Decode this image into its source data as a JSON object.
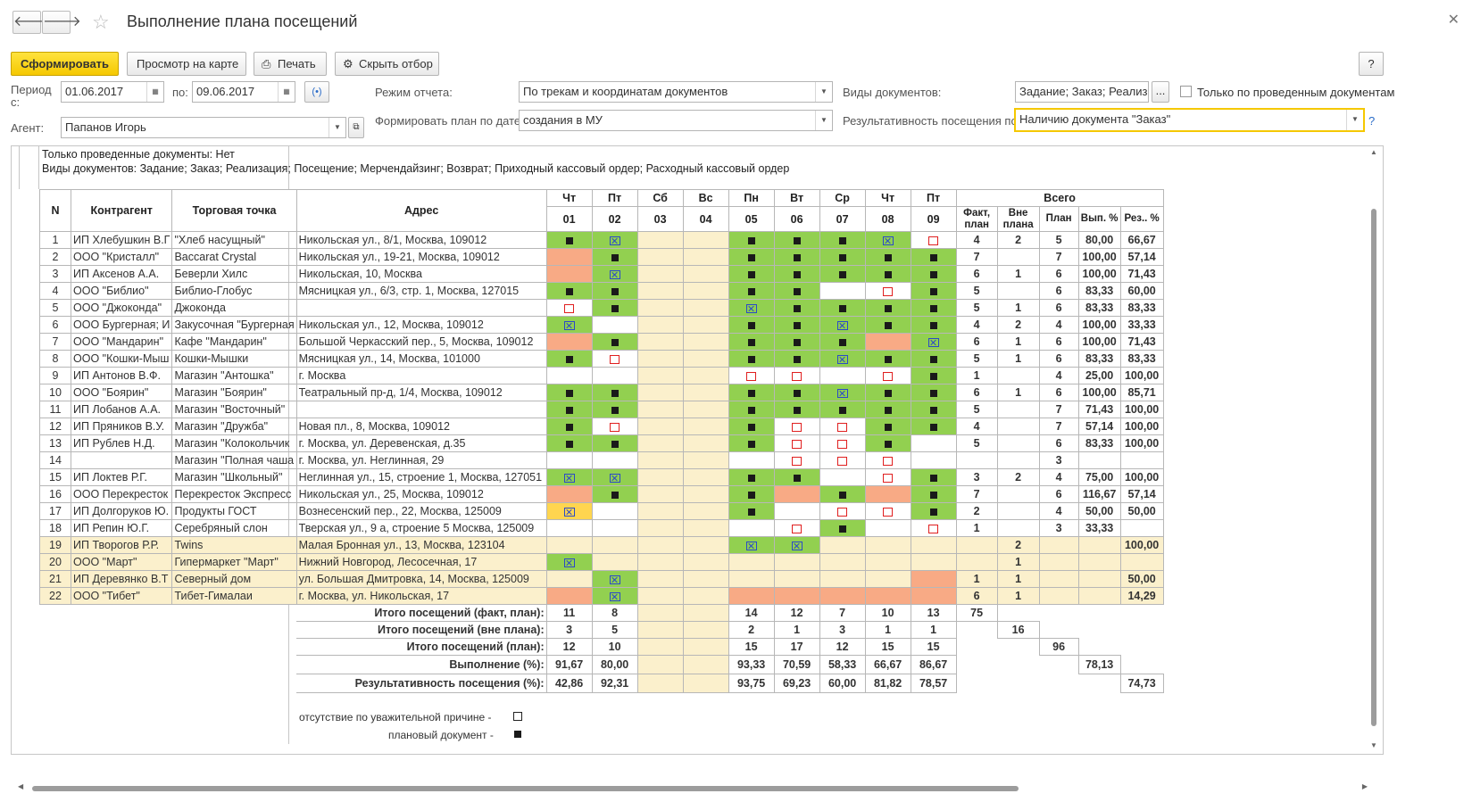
{
  "window": {
    "title": "Выполнение плана посещений",
    "back": "🡐",
    "forward": "🡒",
    "close": "✕"
  },
  "toolbar": {
    "generate": "Сформировать",
    "map": "Просмотр на карте",
    "print": "Печать",
    "hide": "Скрыть отбор",
    "help": "?"
  },
  "filters": {
    "period_label": "Период с:",
    "period_from": "01.06.2017",
    "to_label": "по:",
    "period_to": "09.06.2017",
    "agent_label": "Агент:",
    "agent": "Папанов Игорь",
    "mode_label": "Режим отчета:",
    "mode": "По трекам и координатам документов",
    "plan_label": "Формировать план по дате:",
    "plan": "создания в МУ",
    "doc_types_label": "Виды документов:",
    "doc_types": "Задание; Заказ; Реализа",
    "only_posted_label": "Только по проведенным документам",
    "effect_label": "Результативность посещения по:",
    "effect": "Наличию документа \"Заказ\"",
    "help2": "?"
  },
  "report": {
    "info1": "Только проведенные документы: Нет",
    "info2": "Виды документов: Задание; Заказ; Реализация; Посещение; Мерчендайзинг; Возврат; Приходный кассовый ордер; Расходный кассовый ордер",
    "headers": {
      "n": "N",
      "contractor": "Контрагент",
      "point": "Торговая точка",
      "address": "Адрес",
      "total": "Всего",
      "fact": "Факт, план",
      "extra": "Вне плана",
      "plan": "План",
      "exec": "Вып. %",
      "res": "Рез.. %"
    },
    "days": [
      {
        "dow": "Чт",
        "day": "01",
        "weekend": false
      },
      {
        "dow": "Пт",
        "day": "02",
        "weekend": false
      },
      {
        "dow": "Сб",
        "day": "03",
        "weekend": true
      },
      {
        "dow": "Вс",
        "day": "04",
        "weekend": true
      },
      {
        "dow": "Пн",
        "day": "05",
        "weekend": false
      },
      {
        "dow": "Вт",
        "day": "06",
        "weekend": false
      },
      {
        "dow": "Ср",
        "day": "07",
        "weekend": false
      },
      {
        "dow": "Чт",
        "day": "08",
        "weekend": false
      },
      {
        "dow": "Пт",
        "day": "09",
        "weekend": false
      }
    ],
    "rows": [
      {
        "n": "1",
        "c": "ИП Хлебушкин В.Г",
        "p": "\"Хлеб насущный\"",
        "a": "Никольская ул., 8/1, Москва, 109012",
        "cells": [
          "g:f",
          "g:x",
          "",
          "",
          "g:f",
          "g:f",
          "g:f",
          "g:x",
          "w:o"
        ],
        "fact": "4",
        "ext": "2",
        "plan": "5",
        "exec": "80,00",
        "res": "66,67",
        "hl": false
      },
      {
        "n": "2",
        "c": "ООО \"Кристалл\"",
        "p": "Baccarat Crystal",
        "a": "Никольская ул., 19-21, Москва, 109012",
        "cells": [
          "s:",
          "g:f",
          "",
          "",
          "g:f",
          "g:f",
          "g:f",
          "g:f",
          "g:f"
        ],
        "fact": "7",
        "ext": "",
        "plan": "7",
        "exec": "100,00",
        "res": "57,14",
        "hl": false
      },
      {
        "n": "3",
        "c": "ИП Аксенов А.А.",
        "p": "Беверли Хилс",
        "a": "Никольская, 10, Москва",
        "cells": [
          "s:",
          "g:x",
          "",
          "",
          "g:f",
          "g:f",
          "g:f",
          "g:f",
          "g:f"
        ],
        "fact": "6",
        "ext": "1",
        "plan": "6",
        "exec": "100,00",
        "res": "71,43",
        "hl": false
      },
      {
        "n": "4",
        "c": "ООО \"Библио\"",
        "p": "Библио-Глобус",
        "a": "Мясницкая ул., 6/3, стр. 1, Москва, 127015",
        "cells": [
          "g:f",
          "g:f",
          "",
          "",
          "g:f",
          "g:f",
          "w:",
          "w:o",
          "g:f"
        ],
        "fact": "5",
        "ext": "",
        "plan": "6",
        "exec": "83,33",
        "res": "60,00",
        "hl": false
      },
      {
        "n": "5",
        "c": "ООО \"Джоконда\"",
        "p": "Джоконда",
        "a": "",
        "cells": [
          "w:o",
          "g:f",
          "",
          "",
          "g:x",
          "g:f",
          "g:f",
          "g:f",
          "g:f"
        ],
        "fact": "5",
        "ext": "1",
        "plan": "6",
        "exec": "83,33",
        "res": "83,33",
        "hl": false
      },
      {
        "n": "6",
        "c": "ООО Бургерная; И",
        "p": "Закусочная \"Бургерная",
        "a": "Никольская ул., 12, Москва, 109012",
        "cells": [
          "g:x",
          "w:",
          "",
          "",
          "g:f",
          "g:f",
          "g:x",
          "g:f",
          "g:f"
        ],
        "fact": "4",
        "ext": "2",
        "plan": "4",
        "exec": "100,00",
        "res": "33,33",
        "hl": false
      },
      {
        "n": "7",
        "c": "ООО \"Мандарин\"",
        "p": "Кафе \"Мандарин\"",
        "a": "Большой Черкасский пер., 5, Москва, 109012",
        "cells": [
          "s:",
          "g:f",
          "",
          "",
          "g:f",
          "g:f",
          "g:f",
          "s:",
          "g:x"
        ],
        "fact": "6",
        "ext": "1",
        "plan": "6",
        "exec": "100,00",
        "res": "71,43",
        "hl": false
      },
      {
        "n": "8",
        "c": "ООО \"Кошки-Мыш",
        "p": "Кошки-Мышки",
        "a": "Мясницкая ул., 14, Москва, 101000",
        "cells": [
          "g:f",
          "w:o",
          "",
          "",
          "g:f",
          "g:f",
          "g:x",
          "g:f",
          "g:f"
        ],
        "fact": "5",
        "ext": "1",
        "plan": "6",
        "exec": "83,33",
        "res": "83,33",
        "hl": false
      },
      {
        "n": "9",
        "c": "ИП Антонов В.Ф.",
        "p": "Магазин \"Антошка\"",
        "a": "г. Москва",
        "cells": [
          "w:",
          "w:",
          "",
          "",
          "w:o",
          "w:o",
          "w:",
          "w:o",
          "g:f"
        ],
        "fact": "1",
        "ext": "",
        "plan": "4",
        "exec": "25,00",
        "res": "100,00",
        "hl": false
      },
      {
        "n": "10",
        "c": "ООО \"Боярин\"",
        "p": "Магазин \"Боярин\"",
        "a": "Театральный пр-д, 1/4, Москва, 109012",
        "cells": [
          "g:f",
          "g:f",
          "",
          "",
          "g:f",
          "g:f",
          "g:x",
          "g:f",
          "g:f"
        ],
        "fact": "6",
        "ext": "1",
        "plan": "6",
        "exec": "100,00",
        "res": "85,71",
        "hl": false
      },
      {
        "n": "11",
        "c": "ИП Лобанов А.А.",
        "p": "Магазин \"Восточный\"",
        "a": "",
        "cells": [
          "g:f",
          "g:f",
          "",
          "",
          "g:f",
          "g:f",
          "g:f",
          "g:f",
          "g:f"
        ],
        "fact": "5",
        "ext": "",
        "plan": "7",
        "exec": "71,43",
        "res": "100,00",
        "hl": false
      },
      {
        "n": "12",
        "c": "ИП Пряников В.У.",
        "p": "Магазин \"Дружба\"",
        "a": "Новая пл., 8, Москва, 109012",
        "cells": [
          "g:f",
          "w:o",
          "",
          "",
          "g:f",
          "w:o",
          "w:o",
          "g:f",
          "g:f"
        ],
        "fact": "4",
        "ext": "",
        "plan": "7",
        "exec": "57,14",
        "res": "100,00",
        "hl": false
      },
      {
        "n": "13",
        "c": "ИП Рублев Н.Д.",
        "p": "Магазин \"Колокольчик",
        "a": "г. Москва, ул. Деревенская, д.35",
        "cells": [
          "g:f",
          "g:f",
          "",
          "",
          "g:f",
          "w:o",
          "w:o",
          "g:f",
          "w:"
        ],
        "fact": "5",
        "ext": "",
        "plan": "6",
        "exec": "83,33",
        "res": "100,00",
        "hl": false
      },
      {
        "n": "14",
        "c": "",
        "p": "Магазин \"Полная чаша",
        "a": "г. Москва, ул. Неглинная, 29",
        "cells": [
          "w:",
          "w:",
          "",
          "",
          "w:",
          "w:o",
          "w:o",
          "w:o",
          "w:"
        ],
        "fact": "",
        "ext": "",
        "plan": "3",
        "exec": "",
        "res": "",
        "hl": false
      },
      {
        "n": "15",
        "c": "ИП Локтев Р.Г.",
        "p": "Магазин \"Школьный\"",
        "a": "Неглинная ул., 15, строение 1, Москва, 127051",
        "cells": [
          "g:x",
          "g:x",
          "",
          "",
          "g:f",
          "g:f",
          "w:",
          "w:o",
          "g:f"
        ],
        "fact": "3",
        "ext": "2",
        "plan": "4",
        "exec": "75,00",
        "res": "100,00",
        "hl": false
      },
      {
        "n": "16",
        "c": "ООО Перекресток",
        "p": "Перекресток Экспресс",
        "a": "Никольская ул., 25, Москва, 109012",
        "cells": [
          "s:",
          "g:f",
          "",
          "",
          "g:f",
          "s:",
          "g:f",
          "s:",
          "g:f"
        ],
        "fact": "7",
        "ext": "",
        "plan": "6",
        "exec": "116,67",
        "res": "57,14",
        "hl": false
      },
      {
        "n": "17",
        "c": "ИП Долгоруков Ю.",
        "p": "Продукты ГОСТ",
        "a": "Вознесенский пер., 22, Москва, 125009",
        "cells": [
          "y:x",
          "w:",
          "",
          "",
          "g:f",
          "w:",
          "w:o",
          "w:o",
          "g:f"
        ],
        "fact": "2",
        "ext": "",
        "plan": "4",
        "exec": "50,00",
        "res": "50,00",
        "hl": false
      },
      {
        "n": "18",
        "c": "ИП Репин Ю.Г.",
        "p": "Серебряный слон",
        "a": "Тверская ул., 9 а, строение 5 Москва, 125009",
        "cells": [
          "w:",
          "w:",
          "",
          "",
          "w:",
          "w:o",
          "g:f",
          "w:",
          "w:o"
        ],
        "fact": "1",
        "ext": "",
        "plan": "3",
        "exec": "33,33",
        "res": "",
        "hl": false
      },
      {
        "n": "19",
        "c": "ИП Творогов Р.Р.",
        "p": "Twins",
        "a": "Малая Бронная ул., 13, Москва, 123104",
        "cells": [
          "l:",
          "l:",
          "",
          "",
          "g:x",
          "g:x",
          "l:",
          "l:",
          "l:"
        ],
        "fact": "",
        "ext": "2",
        "plan": "",
        "exec": "",
        "res": "100,00",
        "hl": true
      },
      {
        "n": "20",
        "c": "ООО \"Март\"",
        "p": "Гипермаркет \"Март\"",
        "a": "Нижний Новгород, Лесосечная, 17",
        "cells": [
          "g:x",
          "l:",
          "",
          "",
          "l:",
          "l:",
          "l:",
          "l:",
          "l:"
        ],
        "fact": "",
        "ext": "1",
        "plan": "",
        "exec": "",
        "res": "",
        "hl": true
      },
      {
        "n": "21",
        "c": "ИП Деревянко В.Т",
        "p": "Северный дом",
        "a": "ул. Большая Дмитровка, 14, Москва, 125009",
        "cells": [
          "l:",
          "g:x",
          "",
          "",
          "l:",
          "l:",
          "l:",
          "l:",
          "s:"
        ],
        "fact": "1",
        "ext": "1",
        "plan": "",
        "exec": "",
        "res": "50,00",
        "hl": true
      },
      {
        "n": "22",
        "c": "ООО \"Тибет\"",
        "p": "Тибет-Гималаи",
        "a": "г. Москва, ул. Никольская, 17",
        "cells": [
          "s:",
          "g:x",
          "",
          "",
          "s:",
          "s:",
          "s:",
          "s:",
          "s:"
        ],
        "fact": "6",
        "ext": "1",
        "plan": "",
        "exec": "",
        "res": "14,29",
        "hl": true
      }
    ],
    "summary": [
      {
        "label": "Итого посещений (факт, план):",
        "vals": [
          "11",
          "8",
          "",
          "",
          "14",
          "12",
          "7",
          "10",
          "13"
        ],
        "tot": [
          "75",
          "",
          "",
          "",
          ""
        ]
      },
      {
        "label": "Итого посещений (вне плана):",
        "vals": [
          "3",
          "5",
          "",
          "",
          "2",
          "1",
          "3",
          "1",
          "1"
        ],
        "tot": [
          "",
          "16",
          "",
          "",
          ""
        ]
      },
      {
        "label": "Итого посещений (план):",
        "vals": [
          "12",
          "10",
          "",
          "",
          "15",
          "17",
          "12",
          "15",
          "15"
        ],
        "tot": [
          "",
          "",
          "96",
          "",
          ""
        ]
      },
      {
        "label": "Выполнение (%):",
        "vals": [
          "91,67",
          "80,00",
          "",
          "",
          "93,33",
          "70,59",
          "58,33",
          "66,67",
          "86,67"
        ],
        "tot": [
          "",
          "",
          "",
          "78,13",
          ""
        ]
      },
      {
        "label": "Результативность посещения (%):",
        "vals": [
          "42,86",
          "92,31",
          "",
          "",
          "93,75",
          "69,23",
          "60,00",
          "81,82",
          "78,57"
        ],
        "tot": [
          "",
          "",
          "",
          "",
          "74,73"
        ]
      }
    ],
    "legend": {
      "absent": "отсутствие по уважительной причине -",
      "planned": "плановый документ -"
    }
  },
  "colors": {
    "green": "#92d050",
    "salmon": "#f8aa85",
    "yellow": "#ffd54f",
    "weekend": "#fbf0cc",
    "accent": "#f5c800"
  }
}
